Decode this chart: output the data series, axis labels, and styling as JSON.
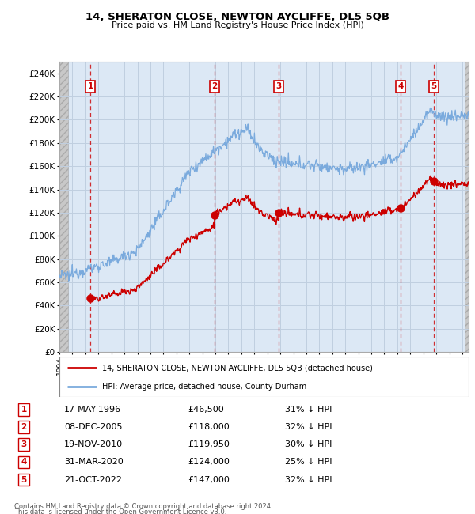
{
  "title1": "14, SHERATON CLOSE, NEWTON AYCLIFFE, DL5 5QB",
  "title2": "Price paid vs. HM Land Registry's House Price Index (HPI)",
  "xlim_start": 1994.0,
  "xlim_end": 2025.5,
  "ylim_min": 0,
  "ylim_max": 250000,
  "yticks": [
    0,
    20000,
    40000,
    60000,
    80000,
    100000,
    120000,
    140000,
    160000,
    180000,
    200000,
    220000,
    240000
  ],
  "ytick_labels": [
    "£0",
    "£20K",
    "£40K",
    "£60K",
    "£80K",
    "£100K",
    "£120K",
    "£140K",
    "£160K",
    "£180K",
    "£200K",
    "£220K",
    "£240K"
  ],
  "sales": [
    {
      "num": 1,
      "date_label": "17-MAY-1996",
      "year": 1996.38,
      "price": 46500,
      "pct": "31%"
    },
    {
      "num": 2,
      "date_label": "08-DEC-2005",
      "year": 2005.93,
      "price": 118000,
      "pct": "32%"
    },
    {
      "num": 3,
      "date_label": "19-NOV-2010",
      "year": 2010.88,
      "price": 119950,
      "pct": "30%"
    },
    {
      "num": 4,
      "date_label": "31-MAR-2020",
      "year": 2020.25,
      "price": 124000,
      "pct": "25%"
    },
    {
      "num": 5,
      "date_label": "21-OCT-2022",
      "year": 2022.8,
      "price": 147000,
      "pct": "32%"
    }
  ],
  "legend_line1": "14, SHERATON CLOSE, NEWTON AYCLIFFE, DL5 5QB (detached house)",
  "legend_line2": "HPI: Average price, detached house, County Durham",
  "footer1": "Contains HM Land Registry data © Crown copyright and database right 2024.",
  "footer2": "This data is licensed under the Open Government Licence v3.0.",
  "hpi_color": "#7aaadd",
  "sale_color": "#cc0000",
  "plot_bg": "#dce8f5",
  "grid_color": "#c0cfe0",
  "hatch_color": "#c8c8c8",
  "table_rows": [
    [
      "1",
      "17-MAY-1996",
      "£46,500",
      "31% ↓ HPI"
    ],
    [
      "2",
      "08-DEC-2005",
      "£118,000",
      "32% ↓ HPI"
    ],
    [
      "3",
      "19-NOV-2010",
      "£119,950",
      "30% ↓ HPI"
    ],
    [
      "4",
      "31-MAR-2020",
      "£124,000",
      "25% ↓ HPI"
    ],
    [
      "5",
      "21-OCT-2022",
      "£147,000",
      "32% ↓ HPI"
    ]
  ]
}
